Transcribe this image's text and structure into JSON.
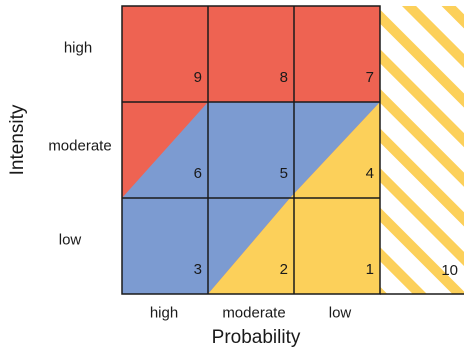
{
  "axes": {
    "x_title": "Probability",
    "y_title": "Intensity",
    "columns": [
      "high",
      "moderate",
      "low"
    ],
    "rows": [
      "high",
      "moderate",
      "low"
    ]
  },
  "cells": [
    {
      "row": 0,
      "col": 0,
      "number": "9"
    },
    {
      "row": 0,
      "col": 1,
      "number": "8"
    },
    {
      "row": 0,
      "col": 2,
      "number": "7"
    },
    {
      "row": 1,
      "col": 0,
      "number": "6"
    },
    {
      "row": 1,
      "col": 1,
      "number": "5"
    },
    {
      "row": 1,
      "col": 2,
      "number": "4"
    },
    {
      "row": 2,
      "col": 0,
      "number": "3"
    },
    {
      "row": 2,
      "col": 1,
      "number": "2"
    },
    {
      "row": 2,
      "col": 2,
      "number": "1"
    }
  ],
  "extra_zone": {
    "number": "10"
  },
  "colors": {
    "red": "#ee6352",
    "blue": "#7c9bd1",
    "yellow": "#fcd05a",
    "stripe": "#fcd05a",
    "grid": "#1a1a1a",
    "text": "#1a1a1a"
  }
}
